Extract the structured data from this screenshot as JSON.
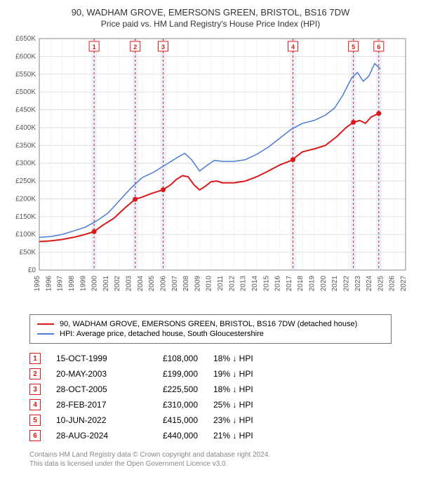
{
  "title": "90, WADHAM GROVE, EMERSONS GREEN, BRISTOL, BS16 7DW",
  "subtitle": "Price paid vs. HM Land Registry's House Price Index (HPI)",
  "chart": {
    "type": "line",
    "plot_bg": "#ffffff",
    "grid_color": "#d9d9d9",
    "grid_minor_color": "#f0f0f0",
    "marker_band_color": "#eaf1fb",
    "marker_line_color": "#d81a1a",
    "marker_line_dash": "3,3",
    "axis_color": "#888888",
    "tick_font_size": 10,
    "y": {
      "min": 0,
      "max": 650000,
      "step": 50000,
      "labels": [
        "£0",
        "£50K",
        "£100K",
        "£150K",
        "£200K",
        "£250K",
        "£300K",
        "£350K",
        "£400K",
        "£450K",
        "£500K",
        "£550K",
        "£600K",
        "£650K"
      ]
    },
    "x": {
      "min": 1995,
      "max": 2027,
      "step": 1,
      "labels": [
        "1995",
        "1996",
        "1997",
        "1998",
        "1999",
        "2000",
        "2001",
        "2002",
        "2003",
        "2004",
        "2005",
        "2006",
        "2007",
        "2008",
        "2009",
        "2010",
        "2011",
        "2012",
        "2013",
        "2014",
        "2015",
        "2016",
        "2017",
        "2018",
        "2019",
        "2020",
        "2021",
        "2022",
        "2023",
        "2024",
        "2025",
        "2026",
        "2027"
      ]
    },
    "series": [
      {
        "name": "price_paid",
        "color": "#d81a1a",
        "width": 2,
        "data": [
          [
            1995.0,
            80000
          ],
          [
            1996.0,
            82000
          ],
          [
            1997.0,
            86000
          ],
          [
            1998.0,
            92000
          ],
          [
            1999.0,
            100000
          ],
          [
            1999.79,
            108000
          ],
          [
            2000.5,
            125000
          ],
          [
            2001.5,
            145000
          ],
          [
            2002.5,
            175000
          ],
          [
            2003.38,
            199000
          ],
          [
            2004.0,
            205000
          ],
          [
            2004.8,
            215000
          ],
          [
            2005.82,
            225500
          ],
          [
            2006.5,
            240000
          ],
          [
            2007.0,
            255000
          ],
          [
            2007.5,
            265000
          ],
          [
            2008.0,
            262000
          ],
          [
            2008.5,
            240000
          ],
          [
            2009.0,
            225000
          ],
          [
            2009.5,
            235000
          ],
          [
            2010.0,
            248000
          ],
          [
            2010.5,
            250000
          ],
          [
            2011.0,
            245000
          ],
          [
            2012.0,
            245000
          ],
          [
            2013.0,
            250000
          ],
          [
            2014.0,
            262000
          ],
          [
            2015.0,
            278000
          ],
          [
            2016.0,
            295000
          ],
          [
            2016.8,
            305000
          ],
          [
            2017.16,
            310000
          ],
          [
            2017.5,
            320000
          ],
          [
            2018.0,
            332000
          ],
          [
            2019.0,
            340000
          ],
          [
            2020.0,
            350000
          ],
          [
            2021.0,
            375000
          ],
          [
            2021.8,
            400000
          ],
          [
            2022.44,
            415000
          ],
          [
            2023.0,
            420000
          ],
          [
            2023.5,
            412000
          ],
          [
            2024.0,
            430000
          ],
          [
            2024.66,
            440000
          ]
        ],
        "points": [
          [
            1999.79,
            108000
          ],
          [
            2003.38,
            199000
          ],
          [
            2005.82,
            225500
          ],
          [
            2017.16,
            310000
          ],
          [
            2022.44,
            415000
          ],
          [
            2024.66,
            440000
          ]
        ]
      },
      {
        "name": "hpi",
        "color": "#4a7bd6",
        "width": 1.5,
        "data": [
          [
            1995.0,
            92000
          ],
          [
            1996.0,
            94000
          ],
          [
            1997.0,
            100000
          ],
          [
            1998.0,
            110000
          ],
          [
            1999.0,
            120000
          ],
          [
            2000.0,
            138000
          ],
          [
            2001.0,
            160000
          ],
          [
            2002.0,
            195000
          ],
          [
            2003.0,
            230000
          ],
          [
            2004.0,
            260000
          ],
          [
            2005.0,
            275000
          ],
          [
            2006.0,
            295000
          ],
          [
            2007.0,
            315000
          ],
          [
            2007.7,
            328000
          ],
          [
            2008.3,
            310000
          ],
          [
            2009.0,
            278000
          ],
          [
            2009.7,
            295000
          ],
          [
            2010.3,
            308000
          ],
          [
            2011.0,
            305000
          ],
          [
            2012.0,
            305000
          ],
          [
            2013.0,
            310000
          ],
          [
            2014.0,
            325000
          ],
          [
            2015.0,
            345000
          ],
          [
            2016.0,
            370000
          ],
          [
            2017.0,
            395000
          ],
          [
            2018.0,
            412000
          ],
          [
            2019.0,
            420000
          ],
          [
            2020.0,
            435000
          ],
          [
            2020.8,
            455000
          ],
          [
            2021.5,
            490000
          ],
          [
            2022.3,
            540000
          ],
          [
            2022.8,
            555000
          ],
          [
            2023.3,
            530000
          ],
          [
            2023.8,
            545000
          ],
          [
            2024.3,
            580000
          ],
          [
            2024.8,
            565000
          ]
        ]
      }
    ],
    "markers": [
      {
        "n": "1",
        "year": 1999.79
      },
      {
        "n": "2",
        "year": 2003.38
      },
      {
        "n": "3",
        "year": 2005.82
      },
      {
        "n": "4",
        "year": 2017.16
      },
      {
        "n": "5",
        "year": 2022.44
      },
      {
        "n": "6",
        "year": 2024.66
      }
    ]
  },
  "legend": [
    {
      "color": "#d81a1a",
      "width": 2,
      "label": "90, WADHAM GROVE, EMERSONS GREEN, BRISTOL, BS16 7DW (detached house)"
    },
    {
      "color": "#4a7bd6",
      "width": 1.5,
      "label": "HPI: Average price, detached house, South Gloucestershire"
    }
  ],
  "transactions": [
    {
      "n": "1",
      "date": "15-OCT-1999",
      "price": "£108,000",
      "delta": "18% ↓ HPI"
    },
    {
      "n": "2",
      "date": "20-MAY-2003",
      "price": "£199,000",
      "delta": "19% ↓ HPI"
    },
    {
      "n": "3",
      "date": "28-OCT-2005",
      "price": "£225,500",
      "delta": "18% ↓ HPI"
    },
    {
      "n": "4",
      "date": "28-FEB-2017",
      "price": "£310,000",
      "delta": "25% ↓ HPI"
    },
    {
      "n": "5",
      "date": "10-JUN-2022",
      "price": "£415,000",
      "delta": "23% ↓ HPI"
    },
    {
      "n": "6",
      "date": "28-AUG-2024",
      "price": "£440,000",
      "delta": "21% ↓ HPI"
    }
  ],
  "footnote_l1": "Contains HM Land Registry data © Crown copyright and database right 2024.",
  "footnote_l2": "This data is licensed under the Open Government Licence v3.0."
}
